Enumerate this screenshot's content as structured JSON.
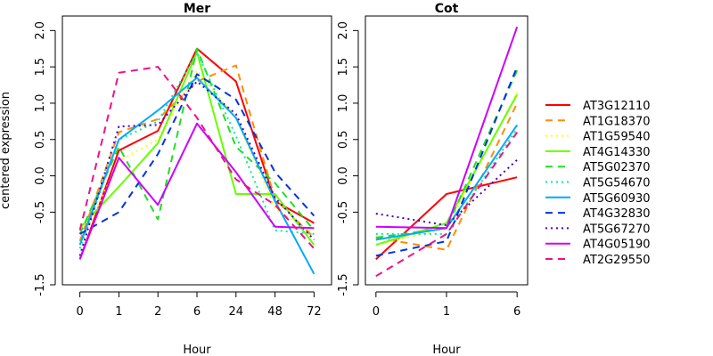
{
  "chart_data": [
    {
      "type": "line",
      "title": "Mer",
      "xlabel": "Hour",
      "ylabel": "centered expression",
      "categories": [
        "0",
        "1",
        "2",
        "6",
        "24",
        "48",
        "72"
      ],
      "y_ticks": [
        "-1.5",
        "-0.5",
        "0.0",
        "0.5",
        "1.0",
        "1.5",
        "2.0"
      ],
      "ylim": [
        -1.5,
        2.2
      ],
      "series": [
        {
          "name": "AT3G12110",
          "values": [
            -1.15,
            0.35,
            0.62,
            1.75,
            1.3,
            -0.35,
            -0.65
          ]
        },
        {
          "name": "AT1G18370",
          "values": [
            -0.9,
            0.6,
            0.78,
            1.3,
            1.52,
            -0.32,
            -0.85
          ]
        },
        {
          "name": "AT1G59540",
          "values": [
            -0.95,
            0.2,
            0.5,
            1.45,
            0.8,
            -0.45,
            -0.8
          ]
        },
        {
          "name": "AT4G14330",
          "values": [
            -0.72,
            -0.15,
            0.45,
            1.7,
            -0.25,
            -0.25,
            -0.95
          ]
        },
        {
          "name": "AT5G02370",
          "values": [
            -0.8,
            0.4,
            -0.6,
            1.75,
            0.4,
            -0.1,
            -0.75
          ]
        },
        {
          "name": "AT5G54670",
          "values": [
            -1.0,
            0.5,
            0.75,
            1.7,
            0.55,
            -0.75,
            -0.8
          ]
        },
        {
          "name": "AT5G60930",
          "values": [
            -0.95,
            0.5,
            0.9,
            1.35,
            0.8,
            -0.35,
            -1.35
          ]
        },
        {
          "name": "AT4G32830",
          "values": [
            -0.8,
            -0.5,
            0.3,
            1.4,
            1.05,
            0.05,
            -0.55
          ]
        },
        {
          "name": "AT5G67270",
          "values": [
            -1.1,
            0.68,
            0.7,
            1.3,
            0.85,
            -0.3,
            -0.88
          ]
        },
        {
          "name": "AT4G05190",
          "values": [
            -1.15,
            0.25,
            -0.4,
            0.72,
            0.05,
            -0.7,
            -0.72
          ]
        },
        {
          "name": "AT2G29550",
          "values": [
            -0.75,
            1.42,
            1.5,
            0.8,
            -0.05,
            -0.4,
            -1.0
          ]
        }
      ]
    },
    {
      "type": "line",
      "title": "Cot",
      "xlabel": "Hour",
      "ylabel": "",
      "categories": [
        "0",
        "1",
        "6"
      ],
      "y_ticks": [
        "-1.5",
        "-0.5",
        "0.0",
        "0.5",
        "1.0",
        "1.5",
        "2.0"
      ],
      "ylim": [
        -1.5,
        2.2
      ],
      "series": [
        {
          "name": "AT3G12110",
          "values": [
            -1.15,
            -0.25,
            -0.02
          ]
        },
        {
          "name": "AT1G18370",
          "values": [
            -0.85,
            -1.02,
            1.0
          ]
        },
        {
          "name": "AT1G59540",
          "values": [
            -0.95,
            -0.72,
            1.15
          ]
        },
        {
          "name": "AT4G14330",
          "values": [
            -0.95,
            -0.65,
            1.12
          ]
        },
        {
          "name": "AT5G02370",
          "values": [
            -0.85,
            -0.72,
            1.45
          ]
        },
        {
          "name": "AT5G54670",
          "values": [
            -0.8,
            -0.8,
            0.65
          ]
        },
        {
          "name": "AT5G60930",
          "values": [
            -0.88,
            -0.72,
            0.7
          ]
        },
        {
          "name": "AT4G32830",
          "values": [
            -1.1,
            -0.9,
            1.5
          ]
        },
        {
          "name": "AT5G67270",
          "values": [
            -0.52,
            -0.68,
            0.22
          ]
        },
        {
          "name": "AT4G05190",
          "values": [
            -0.7,
            -0.72,
            2.05
          ]
        },
        {
          "name": "AT2G29550",
          "values": [
            -1.38,
            -0.8,
            0.6
          ]
        }
      ]
    }
  ],
  "legend": [
    {
      "name": "AT3G12110",
      "color": "#ff0000",
      "dash": "solid"
    },
    {
      "name": "AT1G18370",
      "color": "#ff8c00",
      "dash": "longdash"
    },
    {
      "name": "AT1G59540",
      "color": "#ffff00",
      "dash": "dotted"
    },
    {
      "name": "AT4G14330",
      "color": "#66ff00",
      "dash": "solid"
    },
    {
      "name": "AT5G02370",
      "color": "#22dd22",
      "dash": "longdash"
    },
    {
      "name": "AT5G54670",
      "color": "#00ee99",
      "dash": "dotted"
    },
    {
      "name": "AT5G60930",
      "color": "#00aaff",
      "dash": "solid"
    },
    {
      "name": "AT4G32830",
      "color": "#0033dd",
      "dash": "longdash"
    },
    {
      "name": "AT5G67270",
      "color": "#4400cc",
      "dash": "dotted"
    },
    {
      "name": "AT4G05190",
      "color": "#cc00ff",
      "dash": "solid"
    },
    {
      "name": "AT2G29550",
      "color": "#ee1188",
      "dash": "longdash"
    }
  ]
}
